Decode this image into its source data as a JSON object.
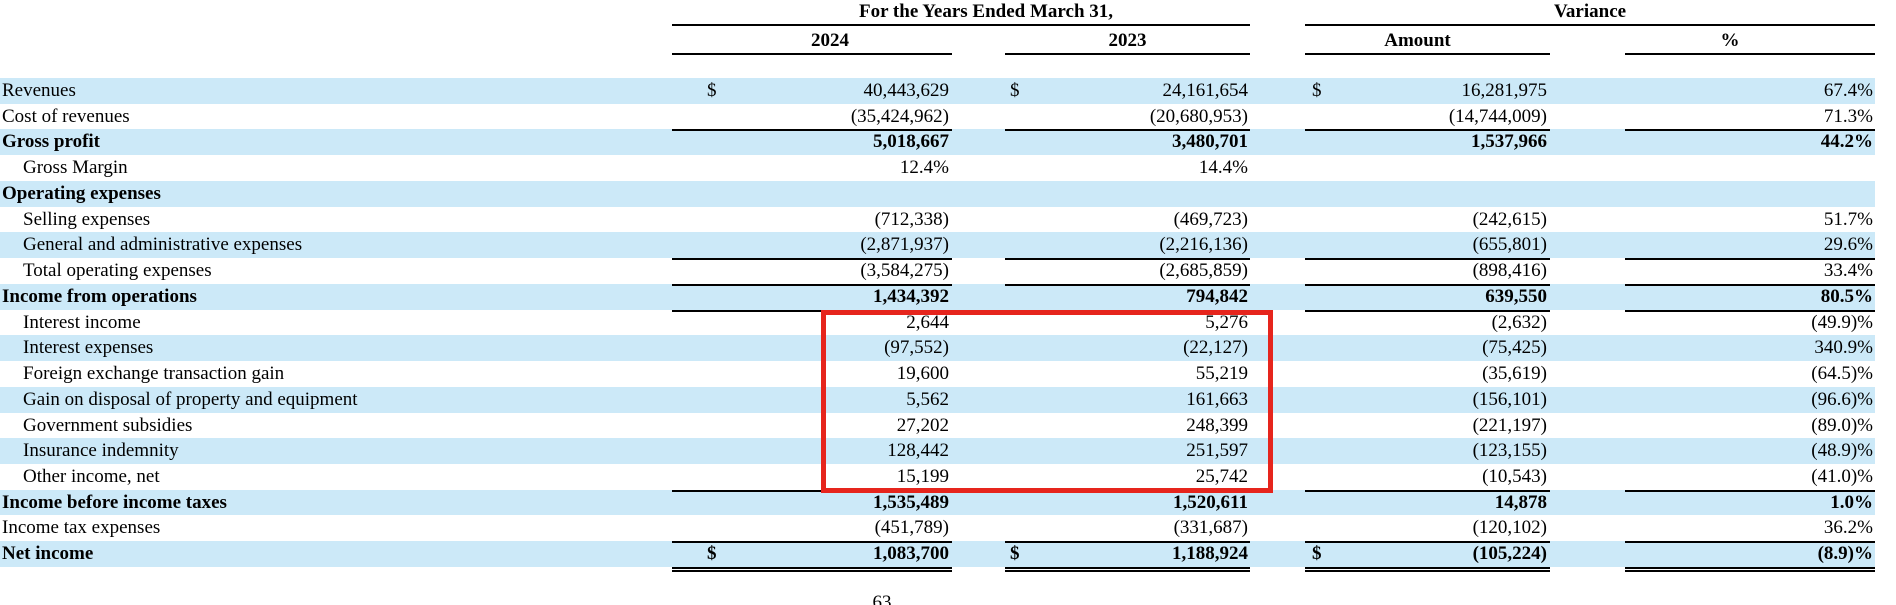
{
  "colors": {
    "row_stripe": "#cce9f8",
    "rule_line": "#000000",
    "highlight_red": "#e6251d"
  },
  "page_number": "63",
  "highlight_box": {
    "color": "#e6251d",
    "first_row": "Interest income",
    "last_row": "Other income, net",
    "columns_covered": [
      "2024",
      "2023"
    ]
  },
  "table": {
    "period_header": "For the Years Ended March 31,",
    "variance_header": "Variance",
    "columns": [
      "2024",
      "2023",
      "Amount",
      "%"
    ],
    "rows": [
      {
        "label": "Revenues",
        "indent": false,
        "bold": false,
        "d1": "$",
        "v1": "40,443,629",
        "d2": "$",
        "v2": "24,161,654",
        "d3": "$",
        "v3": "16,281,975",
        "v4": "67.4%",
        "rule": "none"
      },
      {
        "label": "Cost of revenues",
        "indent": false,
        "bold": false,
        "d1": "",
        "v1": "(35,424,962)",
        "d2": "",
        "v2": "(20,680,953)",
        "d3": "",
        "v3": "(14,744,009)",
        "v4": "71.3%",
        "rule": "single"
      },
      {
        "label": "Gross profit",
        "indent": false,
        "bold": true,
        "d1": "",
        "v1": "5,018,667",
        "d2": "",
        "v2": "3,480,701",
        "d3": "",
        "v3": "1,537,966",
        "v4": "44.2%",
        "rule": "none"
      },
      {
        "label": "Gross Margin",
        "indent": true,
        "bold": false,
        "d1": "",
        "v1": "12.4%",
        "d2": "",
        "v2": "14.4%",
        "d3": "",
        "v3": "",
        "v4": "",
        "rule": "none"
      },
      {
        "label": "Operating expenses",
        "indent": false,
        "bold": true,
        "d1": "",
        "v1": "",
        "d2": "",
        "v2": "",
        "d3": "",
        "v3": "",
        "v4": "",
        "rule": "none"
      },
      {
        "label": "Selling expenses",
        "indent": true,
        "bold": false,
        "d1": "",
        "v1": "(712,338)",
        "d2": "",
        "v2": "(469,723)",
        "d3": "",
        "v3": "(242,615)",
        "v4": "51.7%",
        "rule": "none"
      },
      {
        "label": "General and administrative expenses",
        "indent": true,
        "bold": false,
        "d1": "",
        "v1": "(2,871,937)",
        "d2": "",
        "v2": "(2,216,136)",
        "d3": "",
        "v3": "(655,801)",
        "v4": "29.6%",
        "rule": "single"
      },
      {
        "label": "Total operating expenses",
        "indent": true,
        "bold": false,
        "d1": "",
        "v1": "(3,584,275)",
        "d2": "",
        "v2": "(2,685,859)",
        "d3": "",
        "v3": "(898,416)",
        "v4": "33.4%",
        "rule": "single"
      },
      {
        "label": "Income from operations",
        "indent": false,
        "bold": true,
        "d1": "",
        "v1": "1,434,392",
        "d2": "",
        "v2": "794,842",
        "d3": "",
        "v3": "639,550",
        "v4": "80.5%",
        "rule": "single"
      },
      {
        "label": "Interest income",
        "indent": true,
        "bold": false,
        "d1": "",
        "v1": "2,644",
        "d2": "",
        "v2": "5,276",
        "d3": "",
        "v3": "(2,632)",
        "v4": "(49.9)%",
        "rule": "none"
      },
      {
        "label": "Interest expenses",
        "indent": true,
        "bold": false,
        "d1": "",
        "v1": "(97,552)",
        "d2": "",
        "v2": "(22,127)",
        "d3": "",
        "v3": "(75,425)",
        "v4": "340.9%",
        "rule": "none"
      },
      {
        "label": "Foreign exchange transaction gain",
        "indent": true,
        "bold": false,
        "d1": "",
        "v1": "19,600",
        "d2": "",
        "v2": "55,219",
        "d3": "",
        "v3": "(35,619)",
        "v4": "(64.5)%",
        "rule": "none"
      },
      {
        "label": "Gain on disposal of property and equipment",
        "indent": true,
        "bold": false,
        "d1": "",
        "v1": "5,562",
        "d2": "",
        "v2": "161,663",
        "d3": "",
        "v3": "(156,101)",
        "v4": "(96.6)%",
        "rule": "none"
      },
      {
        "label": "Government subsidies",
        "indent": true,
        "bold": false,
        "d1": "",
        "v1": "27,202",
        "d2": "",
        "v2": "248,399",
        "d3": "",
        "v3": "(221,197)",
        "v4": "(89.0)%",
        "rule": "none"
      },
      {
        "label": "Insurance indemnity",
        "indent": true,
        "bold": false,
        "d1": "",
        "v1": "128,442",
        "d2": "",
        "v2": "251,597",
        "d3": "",
        "v3": "(123,155)",
        "v4": "(48.9)%",
        "rule": "none"
      },
      {
        "label": "Other income, net",
        "indent": true,
        "bold": false,
        "d1": "",
        "v1": "15,199",
        "d2": "",
        "v2": "25,742",
        "d3": "",
        "v3": "(10,543)",
        "v4": "(41.0)%",
        "rule": "single"
      },
      {
        "label": "Income before income taxes",
        "indent": false,
        "bold": true,
        "d1": "",
        "v1": "1,535,489",
        "d2": "",
        "v2": "1,520,611",
        "d3": "",
        "v3": "14,878",
        "v4": "1.0%",
        "rule": "none"
      },
      {
        "label": "Income tax expenses",
        "indent": false,
        "bold": false,
        "d1": "",
        "v1": "(451,789)",
        "d2": "",
        "v2": "(331,687)",
        "d3": "",
        "v3": "(120,102)",
        "v4": "36.2%",
        "rule": "single"
      },
      {
        "label": "Net income",
        "indent": false,
        "bold": true,
        "d1": "$",
        "v1": "1,083,700",
        "d2": "$",
        "v2": "1,188,924",
        "d3": "$",
        "v3": "(105,224)",
        "v4": "(8.9)%",
        "rule": "double"
      }
    ]
  }
}
